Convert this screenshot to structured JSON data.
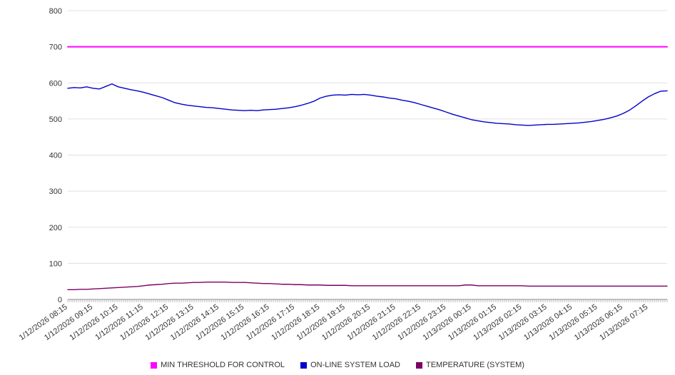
{
  "chart_data": {
    "type": "line",
    "title": "",
    "xlabel": "",
    "ylabel": "",
    "ylim": [
      0,
      800
    ],
    "y_ticks": [
      0,
      100,
      200,
      300,
      400,
      500,
      600,
      700,
      800
    ],
    "grid": true,
    "legend_position": "bottom",
    "label_every_n_points": 4,
    "x_tick_labels": [
      "1/12/2026 08:15",
      "1/12/2026 09:15",
      "1/12/2026 10:15",
      "1/12/2026 11:15",
      "1/12/2026 12:15",
      "1/12/2026 13:15",
      "1/12/2026 14:15",
      "1/12/2026 15:15",
      "1/12/2026 16:15",
      "1/12/2026 17:15",
      "1/12/2026 18:15",
      "1/12/2026 19:15",
      "1/12/2026 20:15",
      "1/12/2026 21:15",
      "1/12/2026 22:15",
      "1/12/2026 23:15",
      "1/13/2026 00:15",
      "1/13/2026 01:15",
      "1/13/2026 02:15",
      "1/13/2026 03:15",
      "1/13/2026 04:15",
      "1/13/2026 05:15",
      "1/13/2026 06:15",
      "1/13/2026 07:15"
    ],
    "series": [
      {
        "name": "MIN THRESHOLD FOR CONTROL",
        "color": "#ff00ff",
        "values": [
          700,
          700
        ]
      },
      {
        "name": "ON-LINE SYSTEM LOAD",
        "color": "#0000cc",
        "values": [
          585,
          587,
          586,
          589,
          585,
          583,
          590,
          597,
          589,
          585,
          581,
          578,
          574,
          569,
          564,
          559,
          552,
          545,
          541,
          538,
          536,
          534,
          532,
          531,
          529,
          527,
          525,
          524,
          523,
          524,
          523,
          525,
          526,
          527,
          529,
          531,
          534,
          538,
          543,
          549,
          558,
          563,
          566,
          567,
          566,
          568,
          567,
          568,
          566,
          563,
          561,
          558,
          556,
          552,
          549,
          545,
          540,
          535,
          530,
          525,
          519,
          513,
          508,
          503,
          498,
          495,
          492,
          490,
          488,
          487,
          486,
          484,
          483,
          482,
          483,
          484,
          485,
          485,
          486,
          487,
          488,
          489,
          491,
          493,
          496,
          499,
          503,
          508,
          515,
          524,
          536,
          549,
          561,
          570,
          577,
          578
        ]
      },
      {
        "name": "TEMPERATURE (SYSTEM)",
        "color": "#7d0063",
        "values": [
          27,
          27,
          28,
          28,
          29,
          30,
          31,
          32,
          33,
          34,
          35,
          36,
          38,
          40,
          41,
          42,
          44,
          45,
          45,
          46,
          47,
          47,
          48,
          48,
          48,
          48,
          47,
          47,
          47,
          46,
          45,
          44,
          44,
          43,
          42,
          42,
          41,
          41,
          40,
          40,
          40,
          39,
          39,
          39,
          39,
          38,
          38,
          38,
          38,
          38,
          38,
          38,
          38,
          38,
          38,
          38,
          38,
          38,
          38,
          38,
          38,
          38,
          38,
          40,
          40,
          38,
          38,
          38,
          38,
          38,
          38,
          38,
          38,
          37,
          37,
          37,
          37,
          37,
          37,
          37,
          37,
          37,
          37,
          37,
          37,
          37,
          37,
          37,
          37,
          37,
          37,
          37,
          37,
          37,
          37,
          37
        ]
      }
    ]
  }
}
